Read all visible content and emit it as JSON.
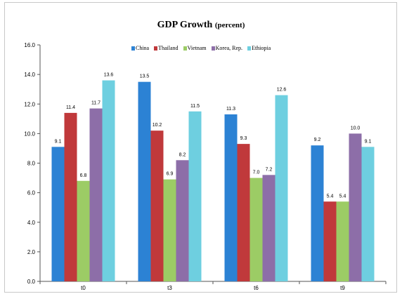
{
  "chart_data": {
    "type": "bar",
    "title": "GDP Growth",
    "subtitle": "(percent)",
    "categories": [
      "t0",
      "t3",
      "t6",
      "t9"
    ],
    "series": [
      {
        "name": "China",
        "color": "#2c82d4",
        "values": [
          9.1,
          13.5,
          11.3,
          9.2
        ],
        "labels": [
          "9.1",
          "13.5",
          "11.3",
          "9.2"
        ]
      },
      {
        "name": "Thailand",
        "color": "#c0393b",
        "values": [
          11.4,
          10.2,
          9.3,
          5.4
        ],
        "labels": [
          "11.4",
          "10.2",
          "9.3",
          "5.4"
        ]
      },
      {
        "name": "Vietnam",
        "color": "#9ccc65",
        "values": [
          6.8,
          6.9,
          7.0,
          5.4
        ],
        "labels": [
          "6.8",
          "6.9",
          "7.0",
          "5.4"
        ]
      },
      {
        "name": "Korea, Rep.",
        "color": "#8d6ea8",
        "values": [
          11.7,
          8.2,
          7.2,
          10.0
        ],
        "labels": [
          "11.7",
          "8.2",
          "7.2",
          "10.0"
        ]
      },
      {
        "name": "Ethiopia",
        "color": "#6ecfe0",
        "values": [
          13.6,
          11.5,
          12.6,
          9.1
        ],
        "labels": [
          "13.6",
          "11.5",
          "12.6",
          "9.1"
        ]
      }
    ],
    "ylim": [
      0,
      16
    ],
    "yticks": [
      "0.0",
      "2.0",
      "4.0",
      "6.0",
      "8.0",
      "10.0",
      "12.0",
      "14.0",
      "16.0"
    ],
    "legend_position": "top",
    "grid": false
  }
}
